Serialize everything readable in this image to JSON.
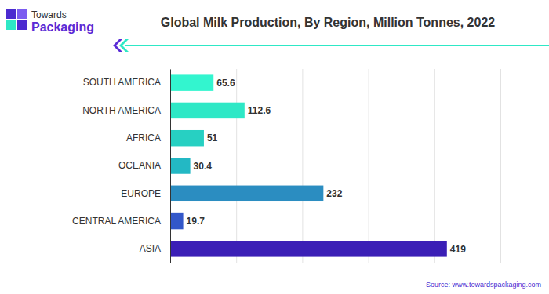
{
  "logo": {
    "line1": "Towards",
    "line2": "Packaging"
  },
  "footer": {
    "source": "Source: www.towardspackaging.com"
  },
  "chart_data": {
    "type": "bar",
    "orientation": "horizontal",
    "title": "Global Milk Production, By Region, Million Tonnes, 2022",
    "categories": [
      "SOUTH AMERICA",
      "NORTH AMERICA",
      "AFRICA",
      "OCEANIA",
      "EUROPE",
      "CENTRAL AMERICA",
      "ASIA"
    ],
    "values": [
      65.6,
      112.6,
      51,
      30.4,
      232,
      19.7,
      419
    ],
    "colors": [
      "#33f5cf",
      "#2ee8c6",
      "#27d0c2",
      "#23b8c4",
      "#2b8dc1",
      "#3357c9",
      "#3b1fb6"
    ],
    "xlim": [
      0,
      500
    ],
    "xticks": [
      0,
      100,
      200,
      300,
      400,
      500
    ],
    "grid": true,
    "data_labels": true,
    "tick_labels": "y"
  }
}
